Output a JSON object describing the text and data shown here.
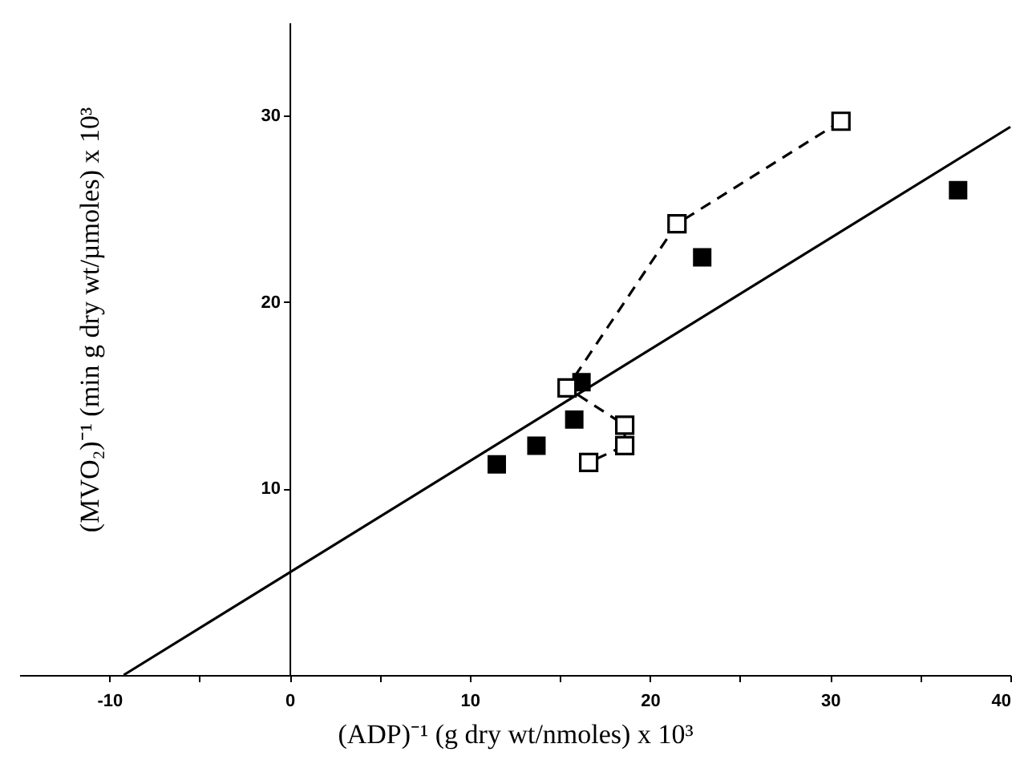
{
  "chart_data": {
    "type": "scatter",
    "xlabel": "(ADP)⁻¹ (g dry wt/nmoles) x 10³",
    "ylabel": "(MVO₂)⁻¹ (min g dry wt/µmoles) x 10³",
    "xlim": [
      -15,
      40
    ],
    "ylim": [
      0,
      35
    ],
    "xticks": [
      -10,
      {
        "value": -5,
        "label": null
      },
      0,
      {
        "value": 5,
        "label": null
      },
      10,
      {
        "value": 15,
        "label": null
      },
      20,
      {
        "value": 25,
        "label": null
      },
      30,
      {
        "value": 35,
        "label": null
      },
      40
    ],
    "yticks": [
      10,
      20,
      30
    ],
    "marker": "square",
    "series": [
      {
        "color": "#000000",
        "x": [
          11.5,
          13.7,
          15.8,
          16.2,
          22.9,
          37.1
        ],
        "values": [
          11.3,
          12.3,
          13.7,
          15.7,
          22.4,
          26.0
        ]
      },
      {
        "type": "line",
        "color": "#000000",
        "line_style": "dashed",
        "x": [
          30.6,
          21.5,
          15.4,
          18.6,
          18.6,
          16.6
        ],
        "values": [
          29.7,
          24.2,
          15.4,
          13.4,
          12.3,
          11.4
        ]
      },
      {
        "type": "line",
        "color": "#000000",
        "line_style": "solid",
        "marker": "none",
        "x": [
          -9.2,
          40
        ],
        "values": [
          0,
          29.4
        ]
      }
    ]
  }
}
